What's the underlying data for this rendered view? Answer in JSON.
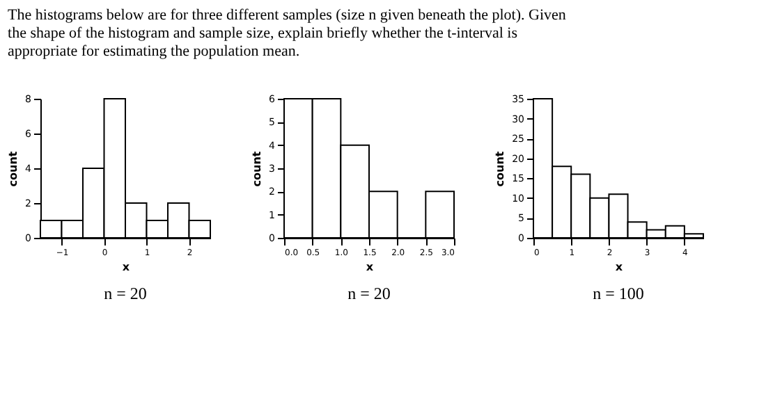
{
  "chart_data": [
    {
      "type": "histogram",
      "title": "The histograms below are for three different samples (size n given beneath the plot). Given the shape of the histogram and sample size, explain briefly whether the t-interval is appropriate for estimating the population mean.",
      "xlabel": "x",
      "ylabel": "count",
      "bins": [
        -1.5,
        -1.0,
        -0.5,
        0.0,
        0.5,
        1.0,
        1.5,
        2.0,
        2.5
      ],
      "values": [
        1,
        1,
        4,
        8,
        2,
        1,
        2,
        1
      ],
      "xlim": [
        -1.5,
        2.5
      ],
      "xticks": [
        -1,
        0,
        1,
        2
      ],
      "ylim": [
        0,
        8
      ],
      "yticks": [
        0,
        2,
        4,
        6,
        8
      ],
      "grid": false,
      "annotations": [
        "n = 20"
      ]
    },
    {
      "type": "histogram",
      "xlabel": "x",
      "ylabel": "count",
      "bins": [
        0.0,
        0.5,
        1.0,
        1.5,
        2.0,
        2.5,
        3.0
      ],
      "values": [
        6,
        6,
        4,
        2,
        0,
        2
      ],
      "xlim": [
        0,
        3
      ],
      "xticks": [
        {
          "value": 0,
          "label": "0.0"
        },
        0.5,
        {
          "value": 1,
          "label": "1.0"
        },
        1.5,
        {
          "value": 2,
          "label": "2.0"
        },
        2.5,
        {
          "value": 3,
          "label": "3.0"
        }
      ],
      "ylim": [
        0,
        6
      ],
      "yticks": [
        0,
        1,
        2,
        3,
        4,
        5,
        6
      ],
      "grid": false,
      "annotations": [
        "n = 20"
      ]
    },
    {
      "type": "histogram",
      "xlabel": "x",
      "ylabel": "count",
      "bins": [
        0.0,
        0.5,
        1.0,
        1.5,
        2.0,
        2.5,
        3.0,
        3.5,
        4.0,
        4.5
      ],
      "values": [
        35,
        18,
        16,
        10,
        11,
        4,
        2,
        3,
        1
      ],
      "xlim": [
        0,
        4.5
      ],
      "xticks": [
        0,
        1,
        2,
        3,
        4
      ],
      "ylim": [
        0,
        35
      ],
      "yticks": [
        0,
        5,
        10,
        15,
        20,
        25,
        30,
        35
      ],
      "grid": false,
      "annotations": [
        "n = 100"
      ]
    }
  ]
}
